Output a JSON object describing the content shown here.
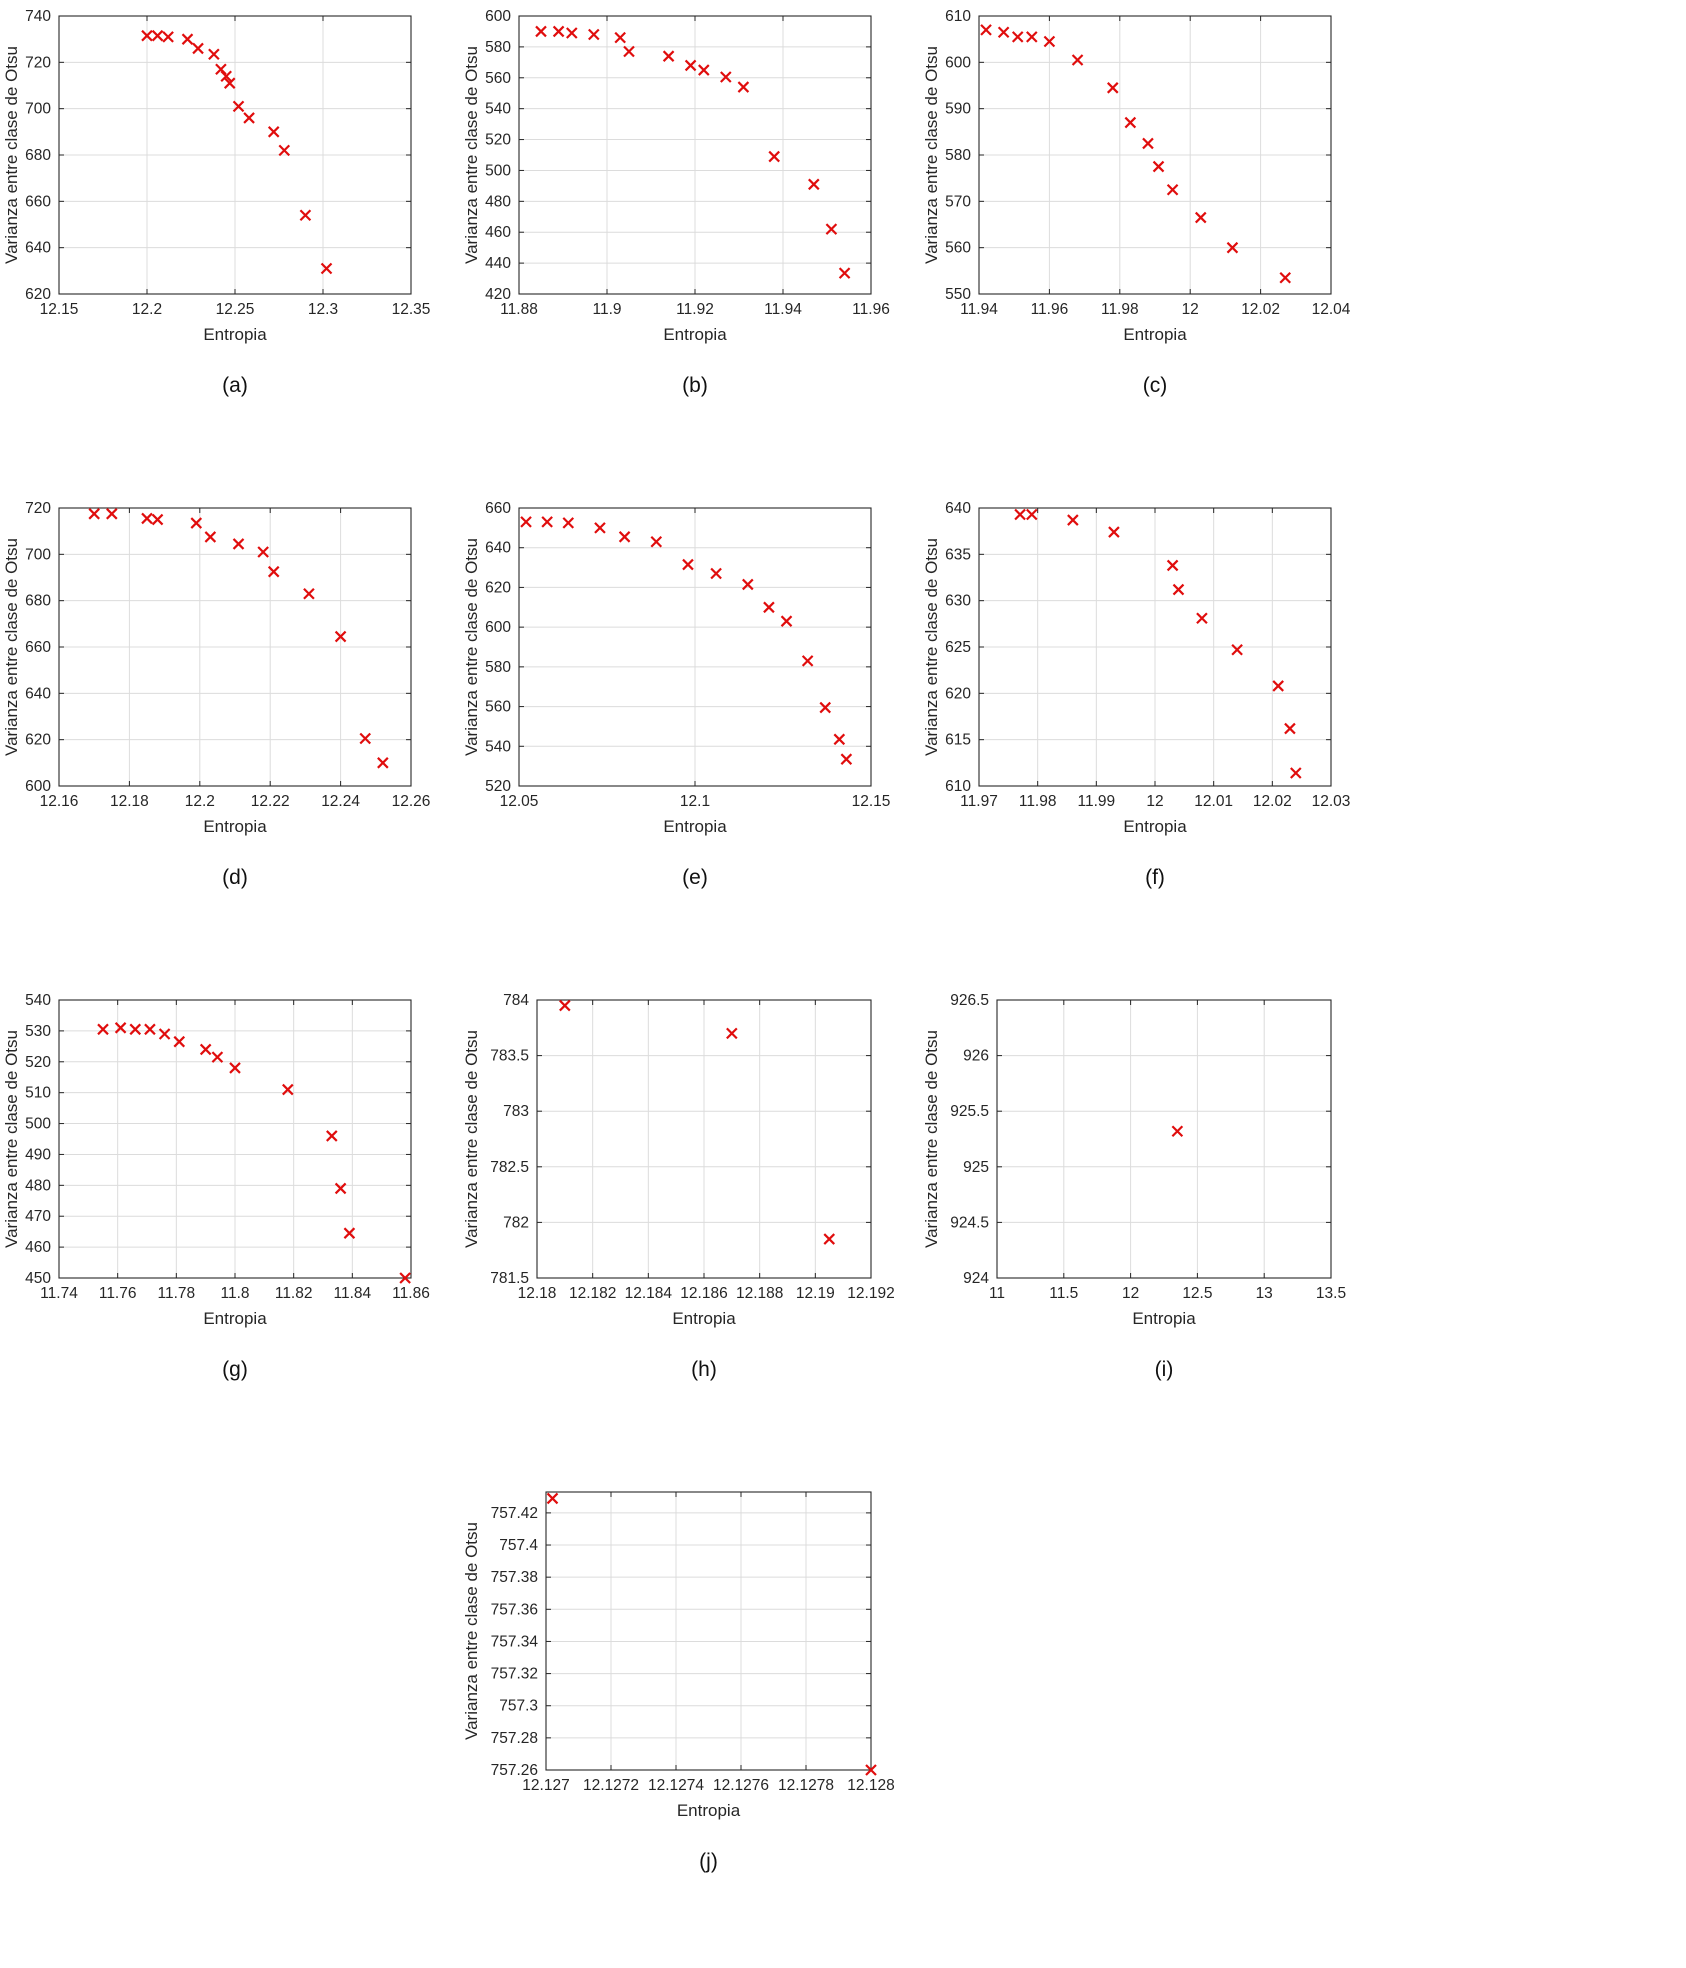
{
  "style": {
    "marker_color": "#e00d0d",
    "grid_color": "#dcdcdc",
    "axis_color": "#262626",
    "background": "#ffffff"
  },
  "chart_data": [
    {
      "type": "scatter",
      "caption": "(a)",
      "marker": "x",
      "grid": true,
      "xlabel": "Entropia",
      "ylabel": "Varianza entre clase de Otsu",
      "xlim": [
        12.15,
        12.35
      ],
      "ylim": [
        620,
        740
      ],
      "xticks": [
        12.15,
        12.2,
        12.25,
        12.3,
        12.35
      ],
      "yticks": [
        620,
        640,
        660,
        680,
        700,
        720,
        740
      ],
      "x": [
        12.2,
        12.206,
        12.212,
        12.223,
        12.229,
        12.238,
        12.242,
        12.245,
        12.247,
        12.252,
        12.258,
        12.272,
        12.278,
        12.29,
        12.302
      ],
      "y": [
        731.5,
        731.5,
        731,
        730,
        726,
        723.5,
        717,
        714,
        711,
        701,
        696,
        690,
        682,
        654,
        631
      ]
    },
    {
      "type": "scatter",
      "caption": "(b)",
      "marker": "x",
      "grid": true,
      "xlabel": "Entropia",
      "ylabel": "Varianza entre clase de Otsu",
      "xlim": [
        11.88,
        11.96
      ],
      "ylim": [
        420,
        600
      ],
      "xticks": [
        11.88,
        11.9,
        11.92,
        11.94,
        11.96
      ],
      "yticks": [
        420,
        440,
        460,
        480,
        500,
        520,
        540,
        560,
        580,
        600
      ],
      "x": [
        11.885,
        11.889,
        11.892,
        11.897,
        11.903,
        11.905,
        11.914,
        11.919,
        11.922,
        11.927,
        11.931,
        11.938,
        11.947,
        11.951,
        11.954
      ],
      "y": [
        590,
        590,
        589,
        588,
        586,
        577,
        574,
        568,
        565,
        560.5,
        554,
        509,
        491,
        462,
        433.5
      ]
    },
    {
      "type": "scatter",
      "caption": "(c)",
      "marker": "x",
      "grid": true,
      "xlabel": "Entropia",
      "ylabel": "Varianza entre clase de Otsu",
      "xlim": [
        11.94,
        12.04
      ],
      "ylim": [
        550,
        610
      ],
      "xticks": [
        11.94,
        11.96,
        11.98,
        12,
        12.02,
        12.04
      ],
      "yticks": [
        550,
        560,
        570,
        580,
        590,
        600,
        610
      ],
      "x": [
        11.942,
        11.947,
        11.951,
        11.955,
        11.96,
        11.968,
        11.978,
        11.983,
        11.988,
        11.991,
        11.995,
        12.003,
        12.012,
        12.027
      ],
      "y": [
        607,
        606.5,
        605.5,
        605.5,
        604.5,
        600.5,
        594.5,
        587,
        582.5,
        577.5,
        572.5,
        566.5,
        560,
        553.5
      ]
    },
    {
      "type": "scatter",
      "caption": "(d)",
      "marker": "x",
      "grid": true,
      "xlabel": "Entropia",
      "ylabel": "Varianza entre clase de Otsu",
      "xlim": [
        12.16,
        12.26
      ],
      "ylim": [
        600,
        720
      ],
      "xticks": [
        12.16,
        12.18,
        12.2,
        12.22,
        12.24,
        12.26
      ],
      "yticks": [
        600,
        620,
        640,
        660,
        680,
        700,
        720
      ],
      "x": [
        12.17,
        12.175,
        12.185,
        12.188,
        12.199,
        12.203,
        12.211,
        12.218,
        12.221,
        12.231,
        12.24,
        12.247,
        12.252
      ],
      "y": [
        717.5,
        717.5,
        715.5,
        715,
        713.5,
        707.5,
        704.5,
        701,
        692.5,
        683,
        664.5,
        620.5,
        610
      ]
    },
    {
      "type": "scatter",
      "caption": "(e)",
      "marker": "x",
      "grid": true,
      "xlabel": "Entropia",
      "ylabel": "Varianza entre clase de Otsu",
      "xlim": [
        12.05,
        12.15
      ],
      "ylim": [
        520,
        660
      ],
      "xticks": [
        12.05,
        12.1,
        12.15
      ],
      "yticks": [
        520,
        540,
        560,
        580,
        600,
        620,
        640,
        660
      ],
      "x": [
        12.052,
        12.058,
        12.064,
        12.073,
        12.08,
        12.089,
        12.098,
        12.106,
        12.115,
        12.121,
        12.126,
        12.132,
        12.137,
        12.141,
        12.143
      ],
      "y": [
        653,
        653,
        652.5,
        650,
        645.5,
        643,
        631.5,
        627,
        621.5,
        610,
        603,
        583,
        559.5,
        543.5,
        533.5
      ]
    },
    {
      "type": "scatter",
      "caption": "(f)",
      "marker": "x",
      "grid": true,
      "xlabel": "Entropia",
      "ylabel": "Varianza entre clase de Otsu",
      "xlim": [
        11.97,
        12.03
      ],
      "ylim": [
        610,
        640
      ],
      "xticks": [
        11.97,
        11.98,
        11.99,
        12,
        12.01,
        12.02,
        12.03
      ],
      "yticks": [
        610,
        615,
        620,
        625,
        630,
        635,
        640
      ],
      "x": [
        11.977,
        11.979,
        11.986,
        11.993,
        12.003,
        12.004,
        12.008,
        12.014,
        12.021,
        12.023,
        12.024
      ],
      "y": [
        639.3,
        639.3,
        638.7,
        637.4,
        633.8,
        631.2,
        628.1,
        624.7,
        620.8,
        616.2,
        611.4
      ]
    },
    {
      "type": "scatter",
      "caption": "(g)",
      "marker": "x",
      "grid": true,
      "xlabel": "Entropia",
      "ylabel": "Varianza entre clase de Otsu",
      "xlim": [
        11.74,
        11.86
      ],
      "ylim": [
        450,
        540
      ],
      "xticks": [
        11.74,
        11.76,
        11.78,
        11.8,
        11.82,
        11.84,
        11.86
      ],
      "yticks": [
        450,
        460,
        470,
        480,
        490,
        500,
        510,
        520,
        530,
        540
      ],
      "x": [
        11.755,
        11.761,
        11.766,
        11.771,
        11.776,
        11.781,
        11.79,
        11.794,
        11.8,
        11.818,
        11.833,
        11.836,
        11.839,
        11.858
      ],
      "y": [
        530.5,
        531,
        530.5,
        530.5,
        529,
        526.5,
        524,
        521.5,
        518,
        511,
        496,
        479,
        464.5,
        450
      ]
    },
    {
      "type": "scatter",
      "caption": "(h)",
      "marker": "x",
      "grid": true,
      "xlabel": "Entropia",
      "ylabel": "Varianza entre clase de Otsu",
      "xlim": [
        12.18,
        12.192
      ],
      "ylim": [
        781.5,
        784
      ],
      "xticks": [
        12.18,
        12.182,
        12.184,
        12.186,
        12.188,
        12.19,
        12.192
      ],
      "yticks": [
        781.5,
        782,
        782.5,
        783,
        783.5,
        784
      ],
      "x": [
        12.181,
        12.187,
        12.1905
      ],
      "y": [
        783.95,
        783.7,
        781.85
      ]
    },
    {
      "type": "scatter",
      "caption": "(i)",
      "marker": "x",
      "grid": true,
      "xlabel": "Entropia",
      "ylabel": "Varianza entre clase de Otsu",
      "xlim": [
        11,
        13.5
      ],
      "ylim": [
        924,
        926.5
      ],
      "xticks": [
        11,
        11.5,
        12,
        12.5,
        13,
        13.5
      ],
      "yticks": [
        924,
        924.5,
        925,
        925.5,
        926,
        926.5
      ],
      "x": [
        12.35
      ],
      "y": [
        925.32
      ]
    },
    {
      "type": "scatter",
      "caption": "(j)",
      "marker": "x",
      "grid": true,
      "xlabel": "Entropia",
      "ylabel": "Varianza entre clase de Otsu",
      "xlim": [
        12.127,
        12.128
      ],
      "ylim": [
        757.26,
        757.433
      ],
      "xticks": [
        12.127,
        12.1272,
        12.1274,
        12.1276,
        12.1278,
        12.128
      ],
      "yticks": [
        757.26,
        757.28,
        757.3,
        757.32,
        757.34,
        757.36,
        757.38,
        757.4,
        757.42
      ],
      "x": [
        12.12702,
        12.128
      ],
      "y": [
        757.429,
        757.26
      ]
    }
  ]
}
